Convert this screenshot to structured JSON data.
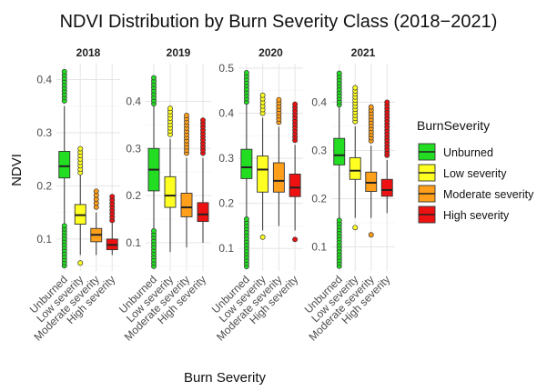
{
  "chart_data": {
    "type": "box",
    "title": "NDVI Distribution by Burn Severity Class (2018−2021)",
    "xlabel": "Burn Severity",
    "ylabel": "NDVI",
    "legend": {
      "title": "BurnSeverity",
      "placement": "right",
      "entries": [
        "Unburned",
        "Low severity",
        "Moderate severity",
        "High severity"
      ]
    },
    "categories": [
      "Unburned",
      "Low severity",
      "Moderate severity",
      "High severity"
    ],
    "colors": {
      "Unburned": "#22dd22",
      "Low severity": "#ffff22",
      "Moderate severity": "#ff9f1a",
      "High severity": "#ee1111"
    },
    "facet_scales": "free_y",
    "grid": true,
    "facets": [
      {
        "label": "2018",
        "ylim": [
          0.04,
          0.43
        ],
        "yticks": [
          0.1,
          0.2,
          0.3,
          0.4
        ],
        "boxes": [
          {
            "category": "Unburned",
            "min": 0.13,
            "q1": 0.215,
            "median": 0.237,
            "q3": 0.265,
            "max": 0.35,
            "outliers_low": [
              0.05,
              0.125
            ],
            "outliers_high": [
              0.36,
              0.415
            ]
          },
          {
            "category": "Low severity",
            "min": 0.07,
            "q1": 0.128,
            "median": 0.145,
            "q3": 0.165,
            "max": 0.22,
            "outliers_low": [
              0.055
            ],
            "outliers_high": [
              0.225,
              0.27
            ]
          },
          {
            "category": "Moderate severity",
            "min": 0.07,
            "q1": 0.095,
            "median": 0.108,
            "q3": 0.12,
            "max": 0.15,
            "outliers_low": [],
            "outliers_high": [
              0.16,
              0.19
            ]
          },
          {
            "category": "High severity",
            "min": 0.07,
            "q1": 0.08,
            "median": 0.089,
            "q3": 0.1,
            "max": 0.13,
            "outliers_low": [],
            "outliers_high": [
              0.135,
              0.18
            ]
          }
        ]
      },
      {
        "label": "2019",
        "ylim": [
          0.04,
          0.48
        ],
        "yticks": [
          0.1,
          0.2,
          0.3,
          0.4
        ],
        "boxes": [
          {
            "category": "Unburned",
            "min": 0.13,
            "q1": 0.21,
            "median": 0.255,
            "q3": 0.3,
            "max": 0.39,
            "outliers_low": [
              0.05,
              0.125
            ],
            "outliers_high": [
              0.395,
              0.45
            ]
          },
          {
            "category": "Low severity",
            "min": 0.08,
            "q1": 0.175,
            "median": 0.2,
            "q3": 0.24,
            "max": 0.32,
            "outliers_low": [],
            "outliers_high": [
              0.33,
              0.385
            ]
          },
          {
            "category": "Moderate severity",
            "min": 0.09,
            "q1": 0.155,
            "median": 0.175,
            "q3": 0.205,
            "max": 0.28,
            "outliers_low": [],
            "outliers_high": [
              0.29,
              0.37
            ]
          },
          {
            "category": "High severity",
            "min": 0.1,
            "q1": 0.145,
            "median": 0.16,
            "q3": 0.185,
            "max": 0.28,
            "outliers_low": [],
            "outliers_high": [
              0.29,
              0.36
            ]
          }
        ]
      },
      {
        "label": "2020",
        "ylim": [
          0.05,
          0.51
        ],
        "yticks": [
          0.1,
          0.2,
          0.3,
          0.4,
          0.5
        ],
        "boxes": [
          {
            "category": "Unburned",
            "min": 0.17,
            "q1": 0.255,
            "median": 0.28,
            "q3": 0.32,
            "max": 0.42,
            "outliers_low": [
              0.06,
              0.165
            ],
            "outliers_high": [
              0.425,
              0.49
            ]
          },
          {
            "category": "Low severity",
            "min": 0.14,
            "q1": 0.225,
            "median": 0.275,
            "q3": 0.305,
            "max": 0.39,
            "outliers_low": [
              0.125
            ],
            "outliers_high": [
              0.4,
              0.44
            ]
          },
          {
            "category": "Moderate severity",
            "min": 0.15,
            "q1": 0.225,
            "median": 0.25,
            "q3": 0.29,
            "max": 0.37,
            "outliers_low": [],
            "outliers_high": [
              0.38,
              0.43
            ]
          },
          {
            "category": "High severity",
            "min": 0.14,
            "q1": 0.215,
            "median": 0.235,
            "q3": 0.265,
            "max": 0.33,
            "outliers_low": [
              0.12
            ],
            "outliers_high": [
              0.34,
              0.42
            ]
          }
        ]
      },
      {
        "label": "2021",
        "ylim": [
          0.05,
          0.48
        ],
        "yticks": [
          0.1,
          0.2,
          0.3,
          0.4
        ],
        "boxes": [
          {
            "category": "Unburned",
            "min": 0.16,
            "q1": 0.27,
            "median": 0.29,
            "q3": 0.325,
            "max": 0.39,
            "outliers_low": [
              0.06,
              0.155
            ],
            "outliers_high": [
              0.395,
              0.46
            ]
          },
          {
            "category": "Low severity",
            "min": 0.16,
            "q1": 0.24,
            "median": 0.258,
            "q3": 0.285,
            "max": 0.35,
            "outliers_low": [
              0.14
            ],
            "outliers_high": [
              0.36,
              0.43
            ]
          },
          {
            "category": "Moderate severity",
            "min": 0.16,
            "q1": 0.215,
            "median": 0.233,
            "q3": 0.255,
            "max": 0.31,
            "outliers_low": [
              0.125
            ],
            "outliers_high": [
              0.32,
              0.39
            ]
          },
          {
            "category": "High severity",
            "min": 0.17,
            "q1": 0.205,
            "median": 0.218,
            "q3": 0.24,
            "max": 0.28,
            "outliers_low": [],
            "outliers_high": [
              0.29,
              0.4
            ]
          }
        ]
      }
    ]
  }
}
